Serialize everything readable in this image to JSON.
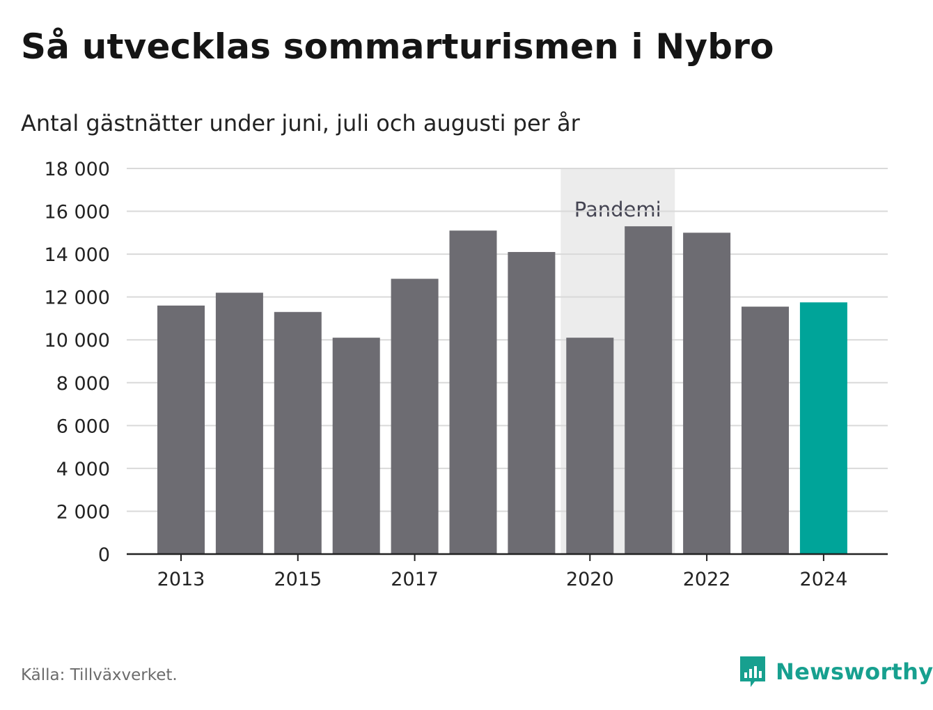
{
  "title": "Så utvecklas sommarturismen i Nybro",
  "subtitle": "Antal gästnätter under juni, juli och augusti per år",
  "source": "Källa: Tillväxverket.",
  "brand": {
    "name": "Newsworthy",
    "icon": "newsworthy-logo-icon",
    "color": "#17a08f"
  },
  "colors": {
    "bar": "#6d6c72",
    "highlight": "#00a499",
    "band": "#ececec",
    "grid": "#d9d9d9",
    "axis": "#222222"
  },
  "chart_data": {
    "type": "bar",
    "categories": [
      "2013",
      "2014",
      "2015",
      "2016",
      "2017",
      "2018",
      "2019",
      "2020",
      "2021",
      "2022",
      "2023",
      "2024"
    ],
    "x_tick_labels": [
      "2013",
      "2015",
      "2017",
      "2020",
      "2022",
      "2024"
    ],
    "values": [
      11600,
      12200,
      11300,
      10100,
      12850,
      15100,
      14100,
      10100,
      15300,
      15000,
      11550,
      11750
    ],
    "highlight": [
      "2024"
    ],
    "ylim": [
      0,
      18000
    ],
    "y_ticks": [
      0,
      2000,
      4000,
      6000,
      8000,
      10000,
      12000,
      14000,
      16000,
      18000
    ],
    "y_tick_labels": [
      "0",
      "2 000",
      "4 000",
      "6 000",
      "8 000",
      "10 000",
      "12 000",
      "14 000",
      "16 000",
      "18 000"
    ],
    "annotation": {
      "label": "Pandemi",
      "from": "2020",
      "to": "2021"
    },
    "grid": true,
    "xlabel": "",
    "ylabel": ""
  }
}
